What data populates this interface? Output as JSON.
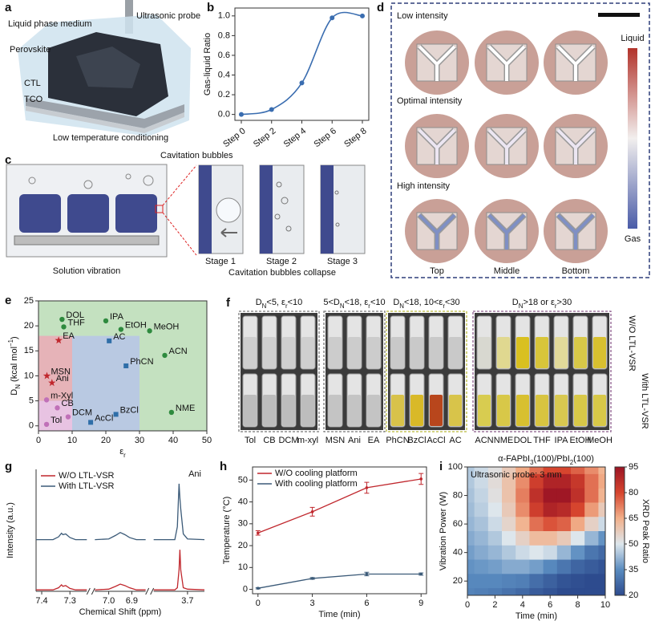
{
  "panel_labels": [
    "a",
    "b",
    "c",
    "d",
    "e",
    "f",
    "g",
    "h",
    "i"
  ],
  "panel_a": {
    "labels": [
      "Liquid phase medium",
      "Ultrasonic probe",
      "Perovskite",
      "CTL",
      "TCO"
    ],
    "caption": "Low temperature conditioning"
  },
  "panel_c": {
    "annotation": "Cavitation bubbles",
    "left_caption": "Solution vibration",
    "stages": [
      "Stage 1",
      "Stage 2",
      "Stage 3"
    ],
    "right_caption": "Cavitation bubbles collapse"
  },
  "panel_d": {
    "rows": [
      "Low intensity",
      "Optimal  intensity",
      "High intensity"
    ],
    "columns": [
      "Top",
      "Middle",
      "Bottom"
    ],
    "colorbar": [
      "Liquid",
      "Gas"
    ]
  },
  "panel_f": {
    "rows": [
      "W/O LTL-VSR",
      "With LTL-VSR"
    ],
    "groups": [
      {
        "header": [
          "D",
          "N",
          "<5, ε",
          "r",
          "<10"
        ],
        "vials": [
          "Tol",
          "CB",
          "DCM",
          "m-xyl"
        ],
        "color": "#777777",
        "top": [
          "#cfcfcf",
          "#cfcfcf",
          "#cfcfcf",
          "#cfcfcf"
        ],
        "bottom": [
          "#bdbdbd",
          "#bdbdbd",
          "#bdbdbd",
          "#bdbdbd"
        ]
      },
      {
        "header": [
          "5<D",
          "N",
          "<18, ε",
          "r",
          "<10"
        ],
        "vials": [
          "MSN",
          "Ani",
          "EA"
        ],
        "color": "#777777",
        "top": [
          "#cccccc",
          "#cccccc",
          "#cccccc"
        ],
        "bottom": [
          "#c4c4c4",
          "#c4c4c4",
          "#c4c4c4"
        ]
      },
      {
        "header": [
          "D",
          "N",
          "<18, 10<ε",
          "r",
          "<30"
        ],
        "vials": [
          "PhCN",
          "BzCl",
          "AcCl",
          "AC"
        ],
        "color": "#b9b93a",
        "top": [
          "#c9c9c9",
          "#c9c9c9",
          "#c9c9c9",
          "#c9c9c9"
        ],
        "bottom": [
          "#d8c24a",
          "#d9b928",
          "#b8461c",
          "#d8c44a"
        ]
      },
      {
        "header": [
          "D",
          "N",
          ">18 or ε",
          "r",
          ">30"
        ],
        "vials": [
          "ACN",
          "NME",
          "DOL",
          "THF",
          "IPA",
          "EtOH",
          "MeOH"
        ],
        "color": "#8a5a8a",
        "top": [
          "#d8d8d0",
          "#e0d890",
          "#d9c020",
          "#d8c53a",
          "#e2da9a",
          "#d8c848",
          "#d8c030"
        ],
        "bottom": [
          "#d8cc50",
          "#d8c848",
          "#d8c030",
          "#d8c440",
          "#d8c850",
          "#d8c848",
          "#d8c848"
        ]
      }
    ]
  },
  "chart_data": [
    {
      "type": "line",
      "smooth": true,
      "categories": [
        "Step 0",
        "Step 2",
        "Step 4",
        "Step 6",
        "Step 8"
      ],
      "values": [
        0,
        0.05,
        0.32,
        0.98,
        1.0
      ],
      "color": "#3a6db0",
      "ylabel": "Gas-liquid Ratio",
      "ylim": [
        -0.06,
        1.08
      ],
      "yticks": [
        {
          "value": 0,
          "label": "0.0"
        },
        0.2,
        0.4,
        0.6,
        0.8,
        {
          "value": 1,
          "label": "1.0"
        }
      ]
    },
    {
      "type": "scatter",
      "xlabel": [
        "ε",
        "r"
      ],
      "ylabel": [
        "D",
        "N",
        " (kcal mol",
        "−1",
        ")"
      ],
      "xlim": [
        0,
        50
      ],
      "xticks": [
        0,
        10,
        20,
        30,
        40,
        50
      ],
      "ylim": [
        -1,
        25
      ],
      "yticks": [
        0,
        5,
        10,
        15,
        20,
        25
      ],
      "regions": [
        {
          "x": [
            0,
            50
          ],
          "y": [
            -1,
            25
          ],
          "color": "#c4e1c0"
        },
        {
          "x": [
            0,
            30
          ],
          "y": [
            -1,
            18
          ],
          "color": "#b9c9e2"
        },
        {
          "x": [
            0,
            10
          ],
          "y": [
            5,
            18
          ],
          "color": "#e6b3b8"
        },
        {
          "x": [
            0,
            10
          ],
          "y": [
            -1,
            5
          ],
          "color": "#e8c3e2"
        }
      ],
      "series": [
        {
          "marker": "circle",
          "color": "#2e8a3e",
          "x": [
            7,
            7.5,
            20,
            24.5,
            33,
            37.5,
            39.5
          ],
          "values": [
            21.3,
            19.8,
            21,
            19.3,
            19,
            14.1,
            2.7
          ],
          "labels": [
            "DOL",
            "THF",
            "IPA",
            "EtOH",
            "MeOH",
            "ACN",
            "NME"
          ]
        },
        {
          "marker": "star",
          "color": "#c0272d",
          "x": [
            6,
            2.5,
            4
          ],
          "values": [
            17.1,
            10,
            8.6
          ],
          "labels": [
            "EA",
            "MSN",
            "Ani"
          ]
        },
        {
          "marker": "square",
          "color": "#2f6ea8",
          "x": [
            21,
            26,
            15.5,
            23
          ],
          "values": [
            17,
            12,
            0.7,
            2.3
          ],
          "labels": [
            "AC",
            "PhCN",
            "AcCl",
            "BzCl"
          ]
        },
        {
          "marker": "circle",
          "color": "#c070b8",
          "x": [
            2.4,
            5.6,
            8.8,
            2.4
          ],
          "values": [
            5.2,
            3.6,
            1.8,
            0.3
          ],
          "labels": [
            "m-Xyl",
            "CB",
            "DCM",
            "Tol"
          ]
        }
      ]
    },
    {
      "type": "line",
      "xlabel": "Chemical Shift (ppm)",
      "ylabel": "Intensity (a.u.)",
      "annotation": "Ani",
      "xsegments": [
        [
          7.42,
          7.24
        ],
        [
          7.06,
          6.84
        ],
        [
          3.78,
          3.66
        ]
      ],
      "xticks": [
        7.4,
        7.3,
        {
          "value": 7,
          "label": "7.0"
        },
        6.9,
        3.7
      ],
      "ylim": [
        0,
        1.7
      ],
      "x": [
        7.42,
        7.36,
        7.34,
        7.33,
        7.325,
        7.315,
        7.3,
        7.28,
        7.24,
        null,
        7.06,
        7.0,
        6.97,
        6.95,
        6.93,
        6.91,
        6.88,
        6.84,
        null,
        3.78,
        3.73,
        3.724,
        3.72,
        3.718,
        3.716,
        3.71,
        3.7,
        3.66
      ],
      "series": [
        {
          "name": "W/O LTL-VSR",
          "color": "#c0272d",
          "values": [
            0.02,
            0.02,
            0.05,
            0.09,
            0.07,
            0.08,
            0.04,
            0.02,
            0.02,
            null,
            0.02,
            0.03,
            0.07,
            0.1,
            0.08,
            0.05,
            0.02,
            0.02,
            null,
            0.02,
            0.02,
            0.05,
            0.3,
            0.58,
            0.3,
            0.05,
            0.03,
            0.02
          ]
        },
        {
          "name": "With LTL-VSR",
          "color": "#3b5a78",
          "values": [
            0.72,
            0.72,
            0.76,
            0.81,
            0.79,
            0.8,
            0.75,
            0.72,
            0.72,
            null,
            0.72,
            0.73,
            0.78,
            0.82,
            0.79,
            0.75,
            0.72,
            0.72,
            null,
            0.72,
            0.72,
            0.9,
            1.5,
            1.3,
            1.15,
            0.8,
            0.73,
            0.72
          ]
        }
      ]
    },
    {
      "type": "line",
      "xlabel": "Time (min)",
      "ylabel": "Temperature (°C)",
      "x": [
        0,
        3,
        6,
        9
      ],
      "xlim": [
        -0.3,
        9.3
      ],
      "xticks": [
        0,
        3,
        6,
        9
      ],
      "ylim": [
        -2,
        56
      ],
      "yticks": [
        0,
        10,
        20,
        30,
        40,
        50
      ],
      "series": [
        {
          "name": "W/O cooling platform",
          "color": "#c0272d",
          "values": [
            25.8,
            35.5,
            46.5,
            50.5
          ],
          "errors": [
            1,
            2,
            2.5,
            2.5
          ]
        },
        {
          "name": "With cooling platform",
          "color": "#3b5a78",
          "values": [
            0.5,
            5,
            7,
            7
          ],
          "errors": [
            0.3,
            0.4,
            0.8,
            0.5
          ]
        }
      ]
    },
    {
      "type": "heatmap",
      "title": [
        "α-FAPbI",
        "3",
        "(100)/PbI",
        "2",
        "(100)"
      ],
      "annotation": "Ultrasonic probe: 3 mm",
      "xlabel": "Time (min)",
      "ylabel": "Vibration Power (W)",
      "xlim": [
        0,
        10
      ],
      "xticks": [
        0,
        2,
        4,
        6,
        8,
        10
      ],
      "ylim": [
        10,
        100
      ],
      "yticks": [
        20,
        40,
        60,
        80,
        100
      ],
      "x": [
        0,
        1,
        2,
        3,
        4,
        5,
        6,
        7,
        8,
        9,
        10
      ],
      "y": [
        100,
        90,
        80,
        70,
        60,
        50,
        40,
        30,
        20,
        10
      ],
      "z": [
        [
          45,
          48,
          52,
          58,
          66,
          74,
          80,
          80,
          76,
          70,
          64
        ],
        [
          45,
          48,
          53,
          60,
          70,
          82,
          90,
          90,
          84,
          74,
          66
        ],
        [
          44,
          47,
          52,
          60,
          72,
          86,
          94,
          94,
          86,
          74,
          64
        ],
        [
          43,
          46,
          50,
          58,
          70,
          82,
          90,
          88,
          80,
          68,
          58
        ],
        [
          42,
          44,
          48,
          55,
          64,
          74,
          78,
          76,
          66,
          56,
          48
        ],
        [
          40,
          42,
          45,
          50,
          56,
          62,
          62,
          58,
          50,
          42,
          36
        ],
        [
          38,
          40,
          42,
          45,
          48,
          50,
          48,
          42,
          36,
          30,
          27
        ],
        [
          36,
          37,
          38,
          40,
          40,
          38,
          34,
          30,
          26,
          24,
          22
        ],
        [
          34,
          34,
          34,
          33,
          32,
          28,
          25,
          22,
          21,
          20,
          20
        ],
        [
          33,
          32,
          31,
          29,
          27,
          24,
          22,
          20,
          20,
          20,
          20
        ]
      ],
      "clabel": "XRD Peak Ratio",
      "clim": [
        20,
        95
      ],
      "cticks": [
        20,
        35,
        50,
        65,
        80,
        95
      ],
      "colors": [
        "#2d4b8e",
        "#5a8cc0",
        "#dde6ec",
        "#f2b08a",
        "#d6452e",
        "#9b1424"
      ]
    }
  ]
}
